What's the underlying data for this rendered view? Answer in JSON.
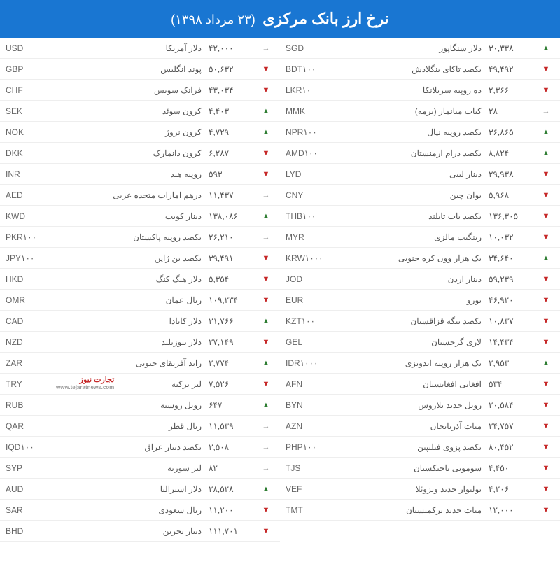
{
  "header": {
    "title": "نرخ ارز بانک مرکزی",
    "date": "(۲۳ مرداد ۱۳۹۸)"
  },
  "colors": {
    "header_bg": "#1976d2",
    "up": "#2e7d32",
    "down": "#c62828",
    "neutral": "#999"
  },
  "logo": {
    "text": "تجارت نیوز",
    "sub": "www.tejaratnews.com"
  },
  "left": [
    {
      "code": "USD",
      "name": "دلار آمریکا",
      "val": "۴۲,۰۰۰",
      "dir": "neutral"
    },
    {
      "code": "GBP",
      "name": "پوند انگلیس",
      "val": "۵۰,۶۳۲",
      "dir": "down"
    },
    {
      "code": "CHF",
      "name": "فرانک سویس",
      "val": "۴۳,۰۳۴",
      "dir": "down"
    },
    {
      "code": "SEK",
      "name": "کرون سوئد",
      "val": "۴,۴۰۳",
      "dir": "up"
    },
    {
      "code": "NOK",
      "name": "کرون نروژ",
      "val": "۴,۷۲۹",
      "dir": "up"
    },
    {
      "code": "DKK",
      "name": "کرون دانمارک",
      "val": "۶,۲۸۷",
      "dir": "down"
    },
    {
      "code": "INR",
      "name": "روپیه هند",
      "val": "۵۹۳",
      "dir": "down"
    },
    {
      "code": "AED",
      "name": "درهم امارات متحده عربی",
      "val": "۱۱,۴۳۷",
      "dir": "neutral"
    },
    {
      "code": "KWD",
      "name": "دینار کویت",
      "val": "۱۳۸,۰۸۶",
      "dir": "up"
    },
    {
      "code": "PKR۱۰۰",
      "name": "یکصد روپیه پاکستان",
      "val": "۲۶,۲۱۰",
      "dir": "neutral"
    },
    {
      "code": "JPY۱۰۰",
      "name": "یکصد ین ژاپن",
      "val": "۳۹,۴۹۱",
      "dir": "down"
    },
    {
      "code": "HKD",
      "name": "دلار هنگ کنگ",
      "val": "۵,۳۵۴",
      "dir": "down"
    },
    {
      "code": "OMR",
      "name": "ریال عمان",
      "val": "۱۰۹,۲۳۴",
      "dir": "down"
    },
    {
      "code": "CAD",
      "name": "دلار کانادا",
      "val": "۳۱,۷۶۶",
      "dir": "up"
    },
    {
      "code": "NZD",
      "name": "دلار نیوزیلند",
      "val": "۲۷,۱۴۹",
      "dir": "down"
    },
    {
      "code": "ZAR",
      "name": "راند آفریقای جنوبی",
      "val": "۲,۷۷۴",
      "dir": "up"
    },
    {
      "code": "TRY",
      "name": "لیر ترکیه",
      "val": "۷,۵۲۶",
      "dir": "down",
      "logo": true
    },
    {
      "code": "RUB",
      "name": "روبل روسیه",
      "val": "۶۴۷",
      "dir": "up"
    },
    {
      "code": "QAR",
      "name": "ریال قطر",
      "val": "۱۱,۵۳۹",
      "dir": "neutral"
    },
    {
      "code": "IQD۱۰۰",
      "name": "یکصد دینار عراق",
      "val": "۳,۵۰۸",
      "dir": "neutral"
    },
    {
      "code": "SYP",
      "name": "لیر سوریه",
      "val": "۸۲",
      "dir": "neutral"
    },
    {
      "code": "AUD",
      "name": "دلار استرالیا",
      "val": "۲۸,۵۲۸",
      "dir": "up"
    },
    {
      "code": "SAR",
      "name": "ریال سعودی",
      "val": "۱۱,۲۰۰",
      "dir": "down"
    },
    {
      "code": "BHD",
      "name": "دینار بحرین",
      "val": "۱۱۱,۷۰۱",
      "dir": "down"
    }
  ],
  "right": [
    {
      "code": "SGD",
      "name": "دلار سنگاپور",
      "val": "۳۰,۳۳۸",
      "dir": "up"
    },
    {
      "code": "BDT۱۰۰",
      "name": "یکصد تاکای بنگلادش",
      "val": "۴۹,۴۹۲",
      "dir": "down"
    },
    {
      "code": "LKR۱۰",
      "name": "ده روپیه سریلانکا",
      "val": "۲,۳۶۶",
      "dir": "down"
    },
    {
      "code": "MMK",
      "name": "کیات میانمار (برمه)",
      "val": "۲۸",
      "dir": "neutral"
    },
    {
      "code": "NPR۱۰۰",
      "name": "یکصد روپیه نپال",
      "val": "۳۶,۸۶۵",
      "dir": "up"
    },
    {
      "code": "AMD۱۰۰",
      "name": "یکصد درام ارمنستان",
      "val": "۸,۸۲۴",
      "dir": "up"
    },
    {
      "code": "LYD",
      "name": "دینار لیبی",
      "val": "۲۹,۹۳۸",
      "dir": "down"
    },
    {
      "code": "CNY",
      "name": "یوان چین",
      "val": "۵,۹۶۸",
      "dir": "down"
    },
    {
      "code": "THB۱۰۰",
      "name": "یکصد بات تایلند",
      "val": "۱۳۶,۳۰۵",
      "dir": "down"
    },
    {
      "code": "MYR",
      "name": "رینگیت مالزی",
      "val": "۱۰,۰۳۲",
      "dir": "down"
    },
    {
      "code": "KRW۱۰۰۰",
      "name": "یک هزار وون کره جنوبی",
      "val": "۳۴,۶۴۰",
      "dir": "up"
    },
    {
      "code": "JOD",
      "name": "دینار اردن",
      "val": "۵۹,۲۳۹",
      "dir": "down"
    },
    {
      "code": "EUR",
      "name": "یورو",
      "val": "۴۶,۹۲۰",
      "dir": "down"
    },
    {
      "code": "KZT۱۰۰",
      "name": "یکصد تنگه قزاقستان",
      "val": "۱۰,۸۳۷",
      "dir": "down"
    },
    {
      "code": "GEL",
      "name": "لاری گرجستان",
      "val": "۱۴,۴۳۴",
      "dir": "down"
    },
    {
      "code": "IDR۱۰۰۰",
      "name": "یک هزار روپیه اندونزی",
      "val": "۲,۹۵۳",
      "dir": "up"
    },
    {
      "code": "AFN",
      "name": "افغانی افغانستان",
      "val": "۵۳۴",
      "dir": "down"
    },
    {
      "code": "BYN",
      "name": "روبل جدید بلاروس",
      "val": "۲۰,۵۸۴",
      "dir": "down"
    },
    {
      "code": "AZN",
      "name": "منات آذربایجان",
      "val": "۲۴,۷۵۷",
      "dir": "down"
    },
    {
      "code": "PHP۱۰۰",
      "name": "یکصد پزوی فیلیپین",
      "val": "۸۰,۴۵۲",
      "dir": "down"
    },
    {
      "code": "TJS",
      "name": "سومونی تاجیکستان",
      "val": "۴,۴۵۰",
      "dir": "down"
    },
    {
      "code": "VEF",
      "name": "بولیوار جدید ونزوئلا",
      "val": "۴,۲۰۶",
      "dir": "down"
    },
    {
      "code": "TMT",
      "name": "منات جدید ترکمنستان",
      "val": "۱۲,۰۰۰",
      "dir": "down"
    }
  ]
}
